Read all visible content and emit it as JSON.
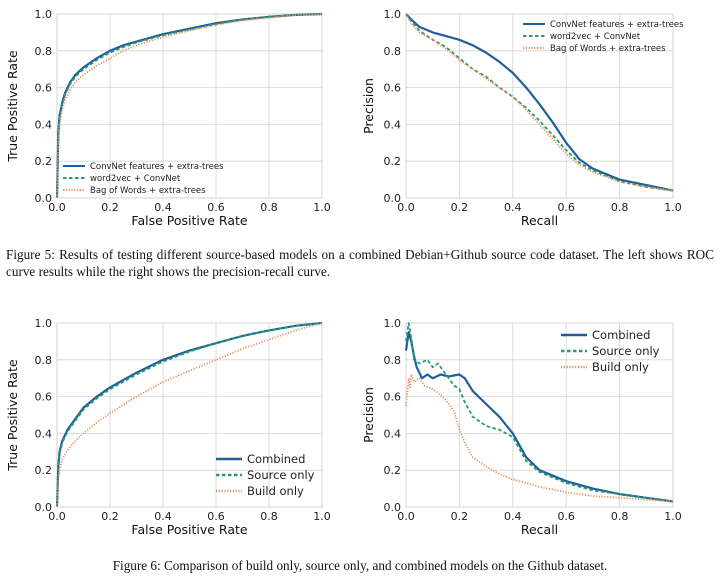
{
  "figure5": {
    "caption": "Figure 5: Results of testing different source-based models on a combined Debian+Github source code dataset. The left shows ROC curve results while the right shows the precision-recall curve."
  },
  "figure6": {
    "caption": "Figure 6: Comparison of build only, source only, and combined models on the Github dataset."
  },
  "chart_data": [
    {
      "type": "line",
      "xlabel": "False Positive Rate",
      "ylabel": "True Positive Rate",
      "xlim": [
        0,
        1
      ],
      "ylim": [
        0,
        1
      ],
      "xticks": [
        "0.0",
        "0.2",
        "0.4",
        "0.6",
        "0.8",
        "1.0"
      ],
      "yticks": [
        "0.0",
        "0.2",
        "0.4",
        "0.6",
        "0.8",
        "1.0"
      ],
      "grid": true,
      "legend_position": "lower-left",
      "legend_size": "small",
      "series": [
        {
          "name": "ConvNet features + extra-trees",
          "color": "#1f5f9f",
          "style": "solid",
          "x": [
            0,
            0.005,
            0.01,
            0.02,
            0.03,
            0.05,
            0.07,
            0.1,
            0.15,
            0.2,
            0.25,
            0.3,
            0.4,
            0.5,
            0.6,
            0.7,
            0.8,
            0.9,
            1.0
          ],
          "y": [
            0,
            0.35,
            0.45,
            0.52,
            0.57,
            0.63,
            0.67,
            0.71,
            0.76,
            0.8,
            0.83,
            0.85,
            0.89,
            0.92,
            0.95,
            0.97,
            0.985,
            0.995,
            1.0
          ]
        },
        {
          "name": "word2vec + ConvNet",
          "color": "#2a9a6a",
          "style": "dashed",
          "x": [
            0,
            0.005,
            0.01,
            0.02,
            0.03,
            0.05,
            0.07,
            0.1,
            0.15,
            0.2,
            0.25,
            0.3,
            0.4,
            0.5,
            0.6,
            0.7,
            0.8,
            0.9,
            1.0
          ],
          "y": [
            0,
            0.34,
            0.44,
            0.51,
            0.56,
            0.62,
            0.66,
            0.7,
            0.75,
            0.79,
            0.82,
            0.845,
            0.885,
            0.915,
            0.945,
            0.97,
            0.985,
            0.995,
            1.0
          ]
        },
        {
          "name": "Bag of Words + extra-trees",
          "color": "#e8905a",
          "style": "dotted",
          "x": [
            0,
            0.005,
            0.01,
            0.02,
            0.03,
            0.05,
            0.07,
            0.1,
            0.15,
            0.2,
            0.25,
            0.3,
            0.4,
            0.5,
            0.6,
            0.7,
            0.8,
            0.9,
            1.0
          ],
          "y": [
            0,
            0.3,
            0.4,
            0.48,
            0.53,
            0.59,
            0.63,
            0.67,
            0.72,
            0.76,
            0.8,
            0.83,
            0.875,
            0.91,
            0.94,
            0.965,
            0.98,
            0.995,
            1.0
          ]
        }
      ]
    },
    {
      "type": "line",
      "xlabel": "Recall",
      "ylabel": "Precision",
      "xlim": [
        0,
        1
      ],
      "ylim": [
        0,
        1
      ],
      "xticks": [
        "0.0",
        "0.2",
        "0.4",
        "0.6",
        "0.8",
        "1.0"
      ],
      "yticks": [
        "0.0",
        "0.2",
        "0.4",
        "0.6",
        "0.8",
        "1.0"
      ],
      "grid": true,
      "legend_position": "top-right",
      "legend_size": "small",
      "series": [
        {
          "name": "ConvNet features + extra-trees",
          "color": "#1f5f9f",
          "style": "solid",
          "x": [
            0,
            0.02,
            0.05,
            0.1,
            0.15,
            0.2,
            0.25,
            0.3,
            0.35,
            0.4,
            0.45,
            0.5,
            0.55,
            0.6,
            0.65,
            0.7,
            0.8,
            0.9,
            1.0
          ],
          "y": [
            1.0,
            0.97,
            0.93,
            0.9,
            0.88,
            0.86,
            0.83,
            0.79,
            0.74,
            0.68,
            0.6,
            0.51,
            0.41,
            0.3,
            0.21,
            0.16,
            0.1,
            0.07,
            0.04
          ]
        },
        {
          "name": "word2vec + ConvNet",
          "color": "#2a9a6a",
          "style": "dashed",
          "x": [
            0,
            0.02,
            0.05,
            0.1,
            0.15,
            0.2,
            0.25,
            0.3,
            0.35,
            0.4,
            0.45,
            0.5,
            0.55,
            0.6,
            0.65,
            0.7,
            0.8,
            0.9,
            1.0
          ],
          "y": [
            1.0,
            0.96,
            0.91,
            0.86,
            0.82,
            0.76,
            0.7,
            0.66,
            0.6,
            0.55,
            0.49,
            0.42,
            0.34,
            0.26,
            0.19,
            0.15,
            0.09,
            0.06,
            0.04
          ]
        },
        {
          "name": "Bag of Words + extra-trees",
          "color": "#e8905a",
          "style": "dotted",
          "x": [
            0,
            0.02,
            0.05,
            0.1,
            0.15,
            0.2,
            0.25,
            0.3,
            0.35,
            0.4,
            0.45,
            0.5,
            0.55,
            0.6,
            0.65,
            0.7,
            0.8,
            0.9,
            1.0
          ],
          "y": [
            1.0,
            0.95,
            0.9,
            0.86,
            0.81,
            0.75,
            0.7,
            0.65,
            0.6,
            0.55,
            0.48,
            0.4,
            0.32,
            0.24,
            0.18,
            0.14,
            0.09,
            0.06,
            0.04
          ]
        }
      ]
    },
    {
      "type": "line",
      "xlabel": "False Positive Rate",
      "ylabel": "True Positive Rate",
      "xlim": [
        0,
        1
      ],
      "ylim": [
        0,
        1
      ],
      "xticks": [
        "0.0",
        "0.2",
        "0.4",
        "0.6",
        "0.8",
        "1.0"
      ],
      "yticks": [
        "0.0",
        "0.2",
        "0.4",
        "0.6",
        "0.8",
        "1.0"
      ],
      "grid": true,
      "legend_position": "lower-right",
      "legend_size": "large",
      "series": [
        {
          "name": "Combined",
          "color": "#1f5f9f",
          "style": "solid",
          "x": [
            0,
            0.005,
            0.01,
            0.02,
            0.04,
            0.07,
            0.1,
            0.15,
            0.2,
            0.3,
            0.4,
            0.5,
            0.6,
            0.7,
            0.8,
            0.9,
            1.0
          ],
          "y": [
            0,
            0.22,
            0.3,
            0.36,
            0.42,
            0.48,
            0.54,
            0.6,
            0.65,
            0.73,
            0.8,
            0.85,
            0.89,
            0.93,
            0.96,
            0.985,
            1.0
          ]
        },
        {
          "name": "Source only",
          "color": "#2a9a6a",
          "style": "dashed",
          "x": [
            0,
            0.005,
            0.01,
            0.02,
            0.04,
            0.07,
            0.1,
            0.15,
            0.2,
            0.3,
            0.4,
            0.5,
            0.6,
            0.7,
            0.8,
            0.9,
            1.0
          ],
          "y": [
            0,
            0.21,
            0.29,
            0.35,
            0.41,
            0.47,
            0.53,
            0.59,
            0.64,
            0.72,
            0.79,
            0.845,
            0.89,
            0.93,
            0.96,
            0.985,
            1.0
          ]
        },
        {
          "name": "Build only",
          "color": "#e8905a",
          "style": "dotted",
          "x": [
            0,
            0.005,
            0.01,
            0.02,
            0.04,
            0.07,
            0.1,
            0.15,
            0.2,
            0.3,
            0.4,
            0.5,
            0.6,
            0.7,
            0.8,
            0.9,
            1.0
          ],
          "y": [
            0,
            0.15,
            0.2,
            0.26,
            0.31,
            0.36,
            0.4,
            0.46,
            0.51,
            0.6,
            0.68,
            0.74,
            0.8,
            0.86,
            0.91,
            0.96,
            1.0
          ]
        }
      ]
    },
    {
      "type": "line",
      "xlabel": "Recall",
      "ylabel": "Precision",
      "xlim": [
        0,
        1
      ],
      "ylim": [
        0,
        1
      ],
      "xticks": [
        "0.0",
        "0.2",
        "0.4",
        "0.6",
        "0.8",
        "1.0"
      ],
      "yticks": [
        "0.0",
        "0.2",
        "0.4",
        "0.6",
        "0.8",
        "1.0"
      ],
      "grid": true,
      "legend_position": "top-right",
      "legend_size": "large",
      "series": [
        {
          "name": "Combined",
          "color": "#1f5f9f",
          "style": "solid",
          "x": [
            0,
            0.01,
            0.02,
            0.03,
            0.04,
            0.06,
            0.08,
            0.1,
            0.13,
            0.16,
            0.2,
            0.22,
            0.25,
            0.3,
            0.35,
            0.4,
            0.45,
            0.5,
            0.6,
            0.7,
            0.8,
            0.9,
            1.0
          ],
          "y": [
            0.85,
            0.95,
            0.9,
            0.82,
            0.76,
            0.7,
            0.72,
            0.7,
            0.72,
            0.71,
            0.72,
            0.7,
            0.63,
            0.56,
            0.49,
            0.4,
            0.27,
            0.2,
            0.14,
            0.1,
            0.07,
            0.05,
            0.03
          ]
        },
        {
          "name": "Source only",
          "color": "#2a9a6a",
          "style": "dashed",
          "x": [
            0,
            0.01,
            0.02,
            0.03,
            0.05,
            0.08,
            0.1,
            0.12,
            0.15,
            0.18,
            0.2,
            0.22,
            0.25,
            0.3,
            0.35,
            0.4,
            0.45,
            0.5,
            0.6,
            0.7,
            0.8,
            0.9,
            1.0
          ],
          "y": [
            0.9,
            1.0,
            0.92,
            0.8,
            0.78,
            0.8,
            0.76,
            0.78,
            0.72,
            0.66,
            0.64,
            0.57,
            0.49,
            0.44,
            0.42,
            0.38,
            0.25,
            0.19,
            0.13,
            0.09,
            0.07,
            0.05,
            0.03
          ]
        },
        {
          "name": "Build only",
          "color": "#e8905a",
          "style": "dotted",
          "x": [
            0,
            0.01,
            0.015,
            0.02,
            0.03,
            0.05,
            0.07,
            0.1,
            0.12,
            0.15,
            0.18,
            0.2,
            0.22,
            0.25,
            0.3,
            0.35,
            0.4,
            0.5,
            0.6,
            0.7,
            0.8,
            0.9,
            1.0
          ],
          "y": [
            0.55,
            0.7,
            0.65,
            0.72,
            0.68,
            0.7,
            0.66,
            0.64,
            0.62,
            0.58,
            0.52,
            0.42,
            0.35,
            0.27,
            0.22,
            0.18,
            0.15,
            0.11,
            0.08,
            0.06,
            0.05,
            0.04,
            0.03
          ]
        }
      ]
    }
  ]
}
